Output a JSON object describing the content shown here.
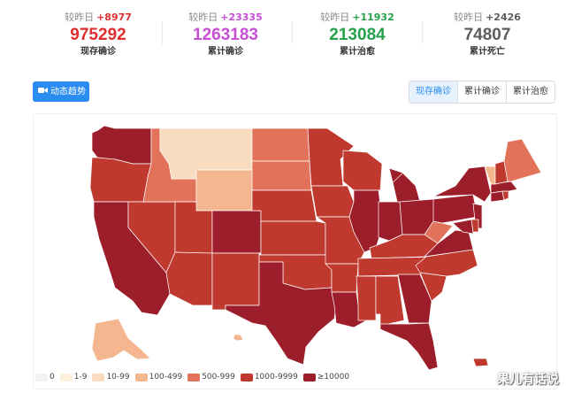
{
  "stats": [
    {
      "prefix": "较昨日",
      "delta": "+8977",
      "value": "975292",
      "label": "现存确诊",
      "color": "#e02e2e"
    },
    {
      "prefix": "较昨日",
      "delta": "+23335",
      "value": "1263183",
      "label": "累计确诊",
      "color": "#c84ed6"
    },
    {
      "prefix": "较昨日",
      "delta": "+11932",
      "value": "213084",
      "label": "累计治愈",
      "color": "#26a14a"
    },
    {
      "prefix": "较昨日",
      "delta": "+2426",
      "value": "74807",
      "label": "累计死亡",
      "color": "#5d5d5d"
    }
  ],
  "trend_button": {
    "label": "动态趋势",
    "icon": "video-camera-icon"
  },
  "tabs": [
    {
      "label": "现存确诊",
      "active": true
    },
    {
      "label": "累计确诊",
      "active": false
    },
    {
      "label": "累计治愈",
      "active": false
    }
  ],
  "legend": [
    {
      "label": "0",
      "color": "#f2f2f2"
    },
    {
      "label": "1-9",
      "color": "#fdf0dc"
    },
    {
      "label": "10-99",
      "color": "#f9dcc0"
    },
    {
      "label": "100-499",
      "color": "#f4b68e"
    },
    {
      "label": "500-999",
      "color": "#e2735a"
    },
    {
      "label": "1000-9999",
      "color": "#c0392f"
    },
    {
      "label": "≥10000",
      "color": "#9d1e2b"
    }
  ],
  "states": [
    {
      "code": "WA",
      "bucket": "≥10000"
    },
    {
      "code": "OR",
      "bucket": "1000-9999"
    },
    {
      "code": "CA",
      "bucket": "≥10000"
    },
    {
      "code": "NV",
      "bucket": "1000-9999"
    },
    {
      "code": "ID",
      "bucket": "500-999"
    },
    {
      "code": "MT",
      "bucket": "10-99"
    },
    {
      "code": "WY",
      "bucket": "100-499"
    },
    {
      "code": "UT",
      "bucket": "1000-9999"
    },
    {
      "code": "AZ",
      "bucket": "1000-9999"
    },
    {
      "code": "CO",
      "bucket": "≥10000"
    },
    {
      "code": "NM",
      "bucket": "1000-9999"
    },
    {
      "code": "ND",
      "bucket": "500-999"
    },
    {
      "code": "SD",
      "bucket": "500-999"
    },
    {
      "code": "NE",
      "bucket": "1000-9999"
    },
    {
      "code": "KS",
      "bucket": "1000-9999"
    },
    {
      "code": "OK",
      "bucket": "1000-9999"
    },
    {
      "code": "TX",
      "bucket": "≥10000"
    },
    {
      "code": "MN",
      "bucket": "1000-9999"
    },
    {
      "code": "IA",
      "bucket": "1000-9999"
    },
    {
      "code": "MO",
      "bucket": "1000-9999"
    },
    {
      "code": "AR",
      "bucket": "1000-9999"
    },
    {
      "code": "LA",
      "bucket": "≥10000"
    },
    {
      "code": "WI",
      "bucket": "1000-9999"
    },
    {
      "code": "IL",
      "bucket": "≥10000"
    },
    {
      "code": "MI",
      "bucket": "≥10000"
    },
    {
      "code": "IN",
      "bucket": "≥10000"
    },
    {
      "code": "OH",
      "bucket": "≥10000"
    },
    {
      "code": "KY",
      "bucket": "1000-9999"
    },
    {
      "code": "TN",
      "bucket": "1000-9999"
    },
    {
      "code": "MS",
      "bucket": "1000-9999"
    },
    {
      "code": "AL",
      "bucket": "1000-9999"
    },
    {
      "code": "GA",
      "bucket": "≥10000"
    },
    {
      "code": "FL",
      "bucket": "≥10000"
    },
    {
      "code": "SC",
      "bucket": "1000-9999"
    },
    {
      "code": "NC",
      "bucket": "1000-9999"
    },
    {
      "code": "VA",
      "bucket": "≥10000"
    },
    {
      "code": "WV",
      "bucket": "500-999"
    },
    {
      "code": "PA",
      "bucket": "≥10000"
    },
    {
      "code": "NY",
      "bucket": "≥10000"
    },
    {
      "code": "NJ",
      "bucket": "≥10000"
    },
    {
      "code": "DE",
      "bucket": "1000-9999"
    },
    {
      "code": "MD",
      "bucket": "≥10000"
    },
    {
      "code": "CT",
      "bucket": "≥10000"
    },
    {
      "code": "RI",
      "bucket": "1000-9999"
    },
    {
      "code": "MA",
      "bucket": "≥10000"
    },
    {
      "code": "VT",
      "bucket": "100-499"
    },
    {
      "code": "NH",
      "bucket": "1000-9999"
    },
    {
      "code": "ME",
      "bucket": "500-999"
    },
    {
      "code": "AK",
      "bucket": "100-499"
    },
    {
      "code": "HI",
      "bucket": "100-499"
    },
    {
      "code": "PR",
      "bucket": "1000-9999"
    }
  ],
  "watermark": "果儿有话说"
}
